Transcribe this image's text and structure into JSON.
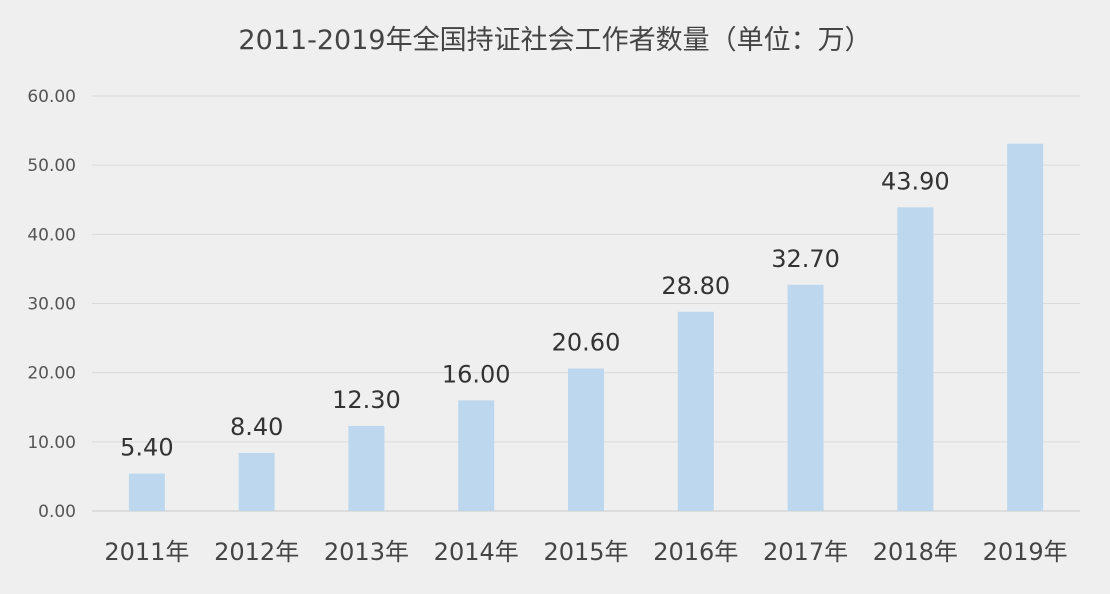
{
  "chart_data": {
    "type": "bar",
    "title": "2011-2019年全国持证社会工作者数量（单位：万）",
    "categories": [
      "2011年",
      "2012年",
      "2013年",
      "2014年",
      "2015年",
      "2016年",
      "2017年",
      "2018年",
      "2019年"
    ],
    "values": [
      5.4,
      8.4,
      12.3,
      16.0,
      20.6,
      28.8,
      32.7,
      43.9,
      53.1
    ],
    "data_labels": [
      "5.40",
      "8.40",
      "12.30",
      "16.00",
      "20.60",
      "28.80",
      "32.70",
      "43.90",
      ""
    ],
    "yticks": [
      "0.00",
      "10.00",
      "20.00",
      "30.00",
      "40.00",
      "50.00",
      "60.00"
    ],
    "ylim": [
      0,
      60
    ],
    "xlabel": "",
    "ylabel": "",
    "grid": true,
    "bar_color": "#bdd7ee"
  }
}
